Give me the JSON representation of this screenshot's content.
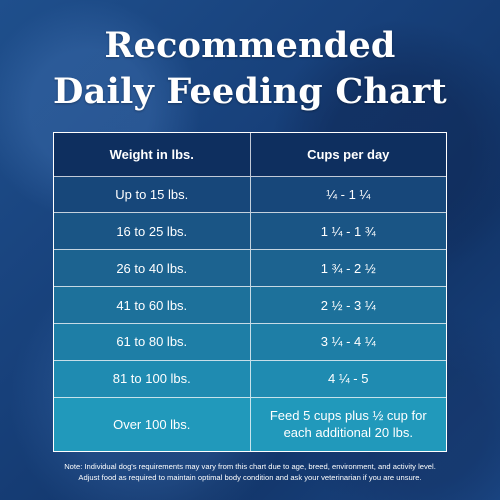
{
  "title": {
    "line1": "Recommended",
    "line2": "Daily Feeding Chart"
  },
  "table": {
    "headers": [
      "Weight in lbs.",
      "Cups per day"
    ],
    "rows": [
      [
        "Up to 15 lbs.",
        "¼  - 1 ¼"
      ],
      [
        "16 to 25 lbs.",
        "1 ¼ - 1 ¾"
      ],
      [
        "26 to 40 lbs.",
        "1 ¾  - 2 ½"
      ],
      [
        "41 to 60 lbs.",
        "2 ½ - 3 ¼"
      ],
      [
        "61 to 80 lbs.",
        "3 ¼ - 4 ¼"
      ],
      [
        "81 to 100 lbs.",
        "4 ¼  - 5"
      ],
      [
        "Over 100 lbs.",
        "Feed 5 cups plus ½ cup for each additional 20 lbs."
      ]
    ]
  },
  "note": {
    "line1": "Note: Individual dog's requirements may vary from this chart due to age, breed, environment, and activity level.",
    "line2": "Adjust food as required to maintain optimal body condition and ask your veterinarian if you are unsure."
  },
  "colors": {
    "background": "#17407a",
    "header_row": "#0e2f5f",
    "row_gradient_start": "#17477a",
    "row_gradient_end": "#2199bb",
    "text": "#ffffff"
  }
}
